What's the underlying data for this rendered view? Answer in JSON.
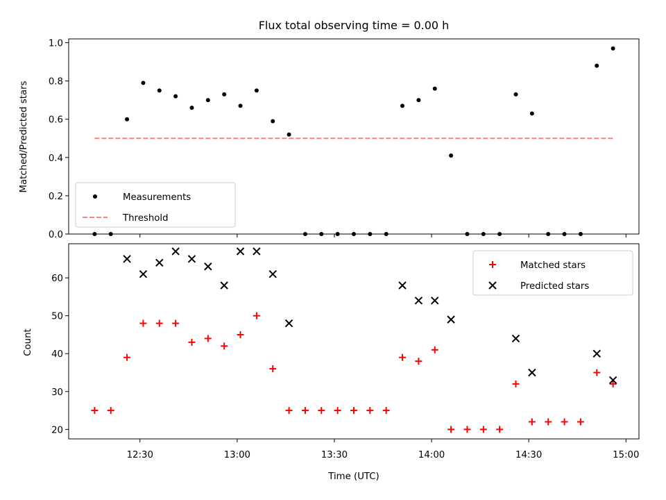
{
  "chart_data": {
    "type": "scatter",
    "title": "Flux total observing time = 0.00 h",
    "xlabel": "Time (UTC)",
    "x_ticks": [
      "12:30",
      "13:00",
      "13:30",
      "14:00",
      "14:30",
      "15:00"
    ],
    "x_tick_minutes": [
      750,
      780,
      810,
      840,
      870,
      900
    ],
    "xlim_minutes": [
      728,
      904
    ],
    "panels": [
      {
        "ylabel": "Matched/Predicted stars",
        "ylim": [
          0,
          1.02
        ],
        "y_ticks": [
          "0.0",
          "0.2",
          "0.4",
          "0.6",
          "0.8",
          "1.0"
        ],
        "y_tick_values": [
          0,
          0.2,
          0.4,
          0.6,
          0.8,
          1.0
        ],
        "legend_position": "lower-left",
        "series": [
          {
            "name": "Measurements",
            "marker": "dot",
            "color": "#000000",
            "x_minutes": [
              736,
              741,
              746,
              751,
              756,
              761,
              766,
              771,
              776,
              781,
              786,
              791,
              796,
              801,
              806,
              811,
              816,
              821,
              826,
              831,
              836,
              841,
              846,
              851,
              856,
              861,
              866,
              871,
              876,
              881,
              886,
              891,
              896
            ],
            "values": [
              0,
              0,
              0.6,
              0.79,
              0.75,
              0.72,
              0.66,
              0.7,
              0.73,
              0.67,
              0.75,
              0.59,
              0.52,
              0,
              0,
              0,
              0,
              0,
              0,
              0.67,
              0.7,
              0.76,
              0.41,
              0,
              0,
              0,
              0.73,
              0.63,
              0,
              0,
              0,
              0.88,
              0.97
            ]
          },
          {
            "name": "Threshold",
            "marker": "dashed-line",
            "color": "#ff7f7f",
            "x_minutes": [
              736,
              896
            ],
            "values": [
              0.5,
              0.5
            ]
          }
        ]
      },
      {
        "ylabel": "Count",
        "ylim": [
          17.5,
          69
        ],
        "y_ticks": [
          "20",
          "30",
          "40",
          "50",
          "60"
        ],
        "y_tick_values": [
          20,
          30,
          40,
          50,
          60
        ],
        "legend_position": "upper-right",
        "series": [
          {
            "name": "Matched stars",
            "marker": "plus",
            "color": "#ff0000",
            "x_minutes": [
              736,
              741,
              746,
              751,
              756,
              761,
              766,
              771,
              776,
              781,
              786,
              791,
              796,
              801,
              806,
              811,
              816,
              821,
              826,
              831,
              836,
              841,
              846,
              851,
              856,
              861,
              866,
              871,
              876,
              881,
              886,
              891,
              896
            ],
            "values": [
              25,
              25,
              39,
              48,
              48,
              48,
              43,
              44,
              42,
              45,
              50,
              36,
              25,
              25,
              25,
              25,
              25,
              25,
              25,
              39,
              38,
              41,
              20,
              20,
              20,
              20,
              32,
              22,
              22,
              22,
              22,
              35,
              32
            ]
          },
          {
            "name": "Predicted stars",
            "marker": "x",
            "color": "#000000",
            "x_minutes": [
              746,
              751,
              756,
              761,
              766,
              771,
              776,
              781,
              786,
              791,
              796,
              831,
              836,
              841,
              846,
              866,
              871,
              891,
              896
            ],
            "values": [
              65,
              61,
              64,
              67,
              65,
              63,
              58,
              67,
              67,
              61,
              48,
              58,
              54,
              54,
              49,
              44,
              35,
              40,
              33
            ]
          }
        ]
      }
    ]
  }
}
